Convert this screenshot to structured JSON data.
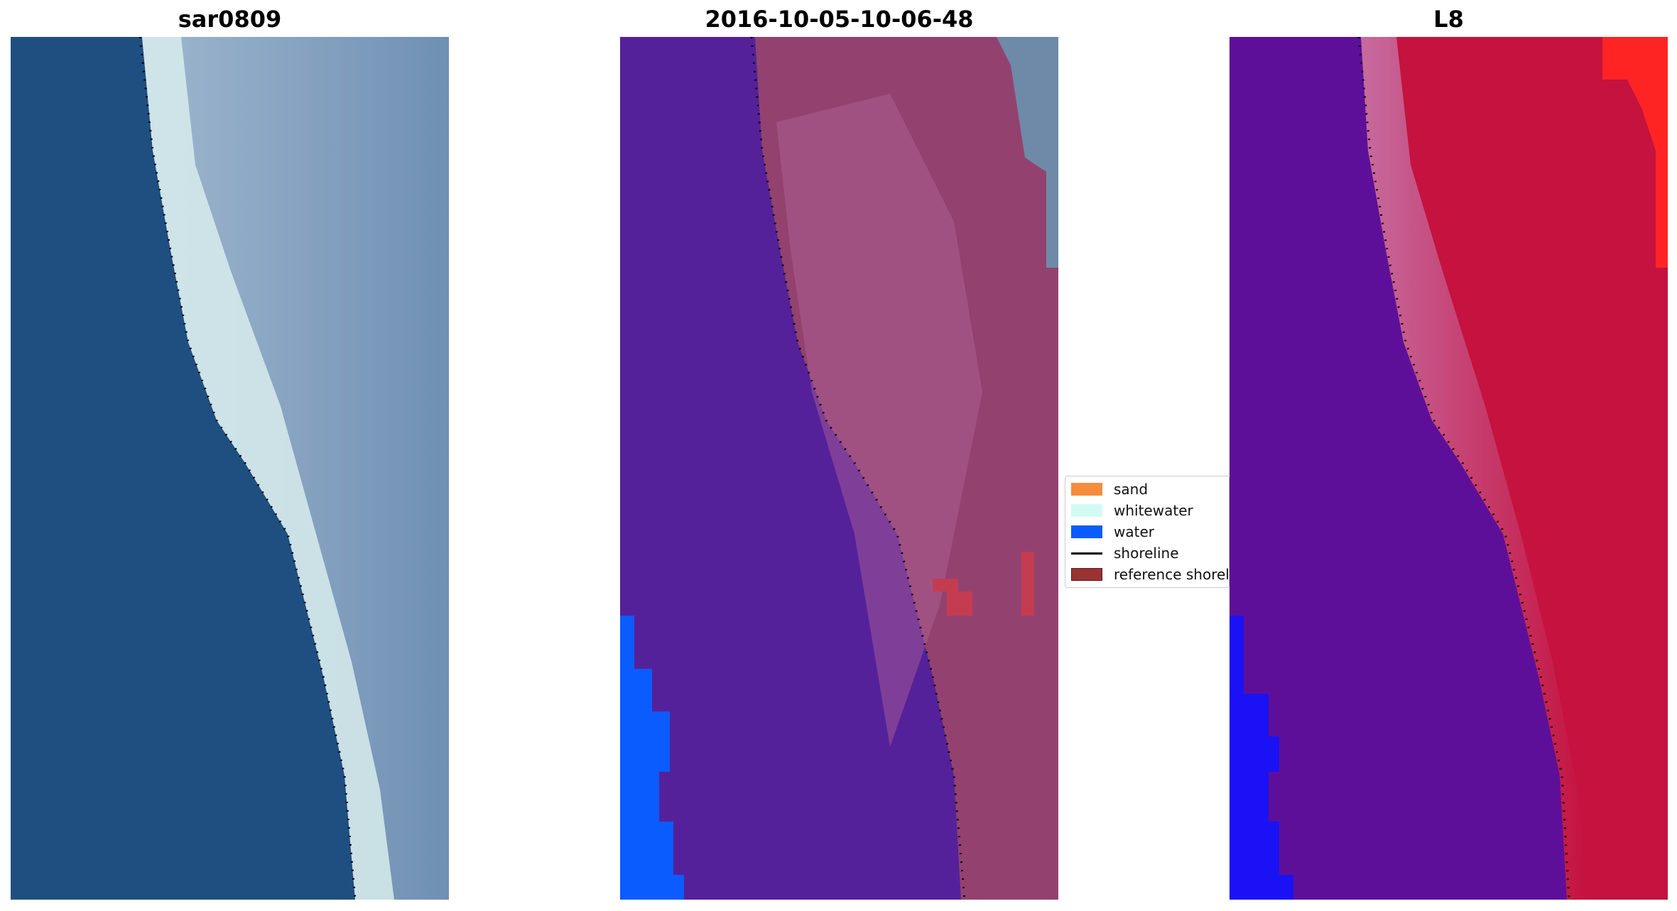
{
  "panels": [
    {
      "title": "sar0809"
    },
    {
      "title": "2016-10-05-10-06-48"
    },
    {
      "title": "L8"
    }
  ],
  "legend": {
    "items": [
      {
        "label": "sand",
        "color": "#f78c3c",
        "kind": "patch"
      },
      {
        "label": "whitewater",
        "color": "#d2fbf5",
        "kind": "patch"
      },
      {
        "label": "water",
        "color": "#0a5cff",
        "kind": "patch"
      },
      {
        "label": "shoreline",
        "color": "#000000",
        "kind": "line"
      },
      {
        "label": "reference shoreline",
        "color": "#9b3232",
        "kind": "patch"
      }
    ]
  },
  "colors": {
    "ocean_rgb": "#1f4f80",
    "land_rgb": "#7f9cbc",
    "surf_rgb": "#d7ecec",
    "class_water": "#0a5cff",
    "class_other": "#55219a",
    "class_land": "#93426f",
    "ndwi_water": "#5e0f9a",
    "ndwi_land": "#c5123e",
    "ndwi_high": "#ff2424"
  }
}
